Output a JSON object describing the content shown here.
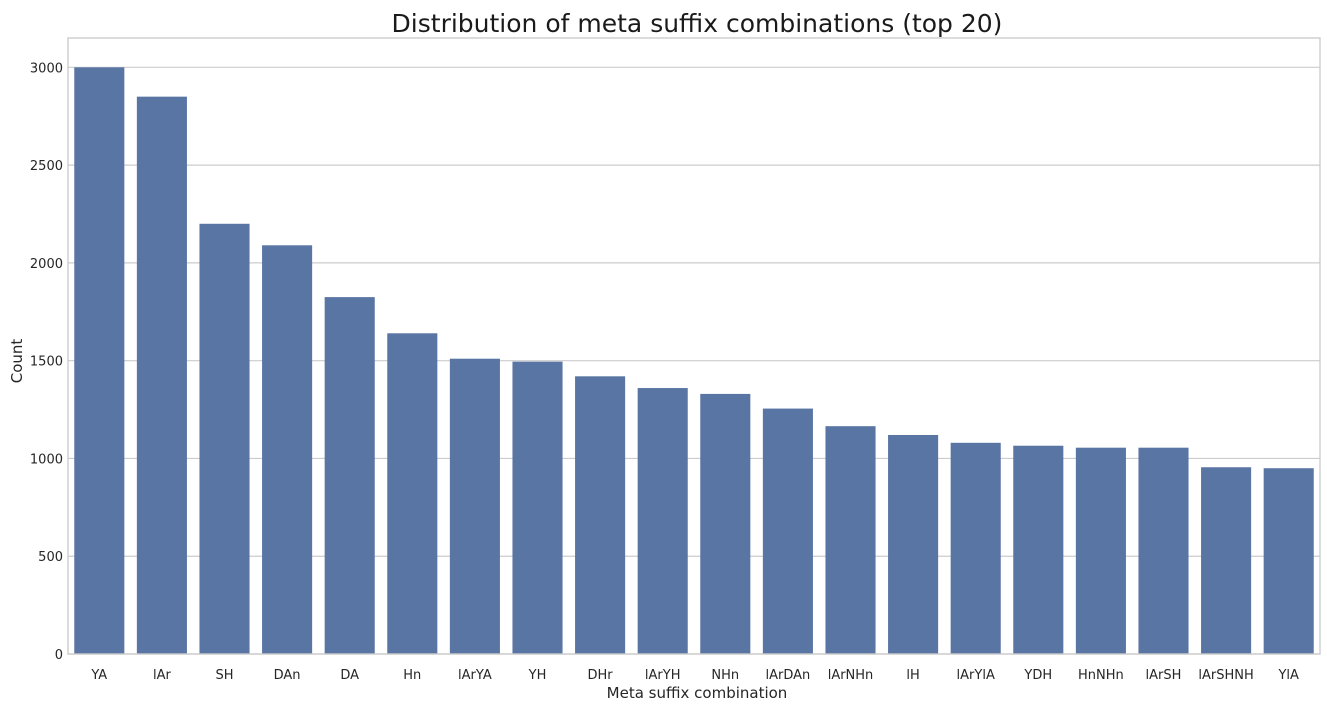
{
  "chart_data": {
    "type": "bar",
    "title": "Distribution of meta suffix combinations (top 20)",
    "xlabel": "Meta suffix combination",
    "ylabel": "Count",
    "categories": [
      "YA",
      "lAr",
      "SH",
      "DAn",
      "DA",
      "Hn",
      "lArYA",
      "YH",
      "DHr",
      "lArYH",
      "NHn",
      "lArDAn",
      "lArNHn",
      "lH",
      "lArYlA",
      "YDH",
      "HnNHn",
      "lArSH",
      "lArSHNH",
      "YlA"
    ],
    "values": [
      3000,
      2850,
      2200,
      2090,
      1825,
      1640,
      1510,
      1495,
      1420,
      1360,
      1330,
      1255,
      1165,
      1120,
      1080,
      1065,
      1055,
      1055,
      955,
      950
    ],
    "yticks": [
      0,
      500,
      1000,
      1500,
      2000,
      2500,
      3000
    ],
    "ylim": [
      0,
      3150
    ],
    "grid": true,
    "bar_color": "#5975a4"
  }
}
